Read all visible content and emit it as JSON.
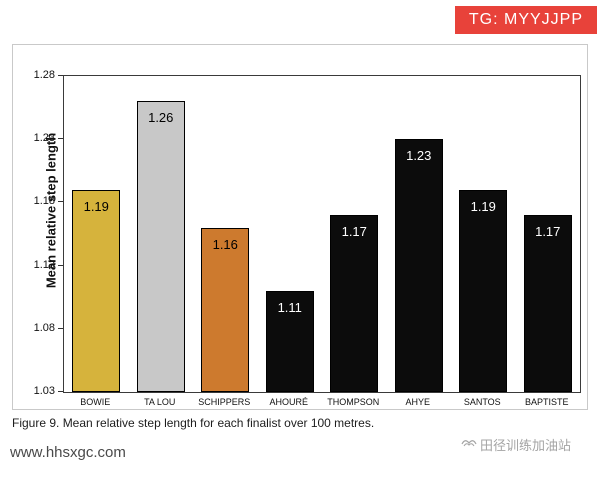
{
  "badge": {
    "text": "TG: MYYJJPP",
    "color": "#e8423a"
  },
  "caption": "Figure 9. Mean relative step length for each finalist over 100 metres.",
  "site_url": "www.hhsxgc.com",
  "watermark_text": "田径训练加油站",
  "chart_data": {
    "type": "bar",
    "categories": [
      "BOWIE",
      "TA LOU",
      "SCHIPPERS",
      "AHOURÉ",
      "THOMPSON",
      "AHYE",
      "SANTOS",
      "BAPTISTE"
    ],
    "values": [
      1.19,
      1.26,
      1.16,
      1.11,
      1.17,
      1.23,
      1.19,
      1.17
    ],
    "bar_colors": [
      "#d6b33c",
      "#c8c8c8",
      "#cd7a2e",
      "#0c0c0c",
      "#0c0c0c",
      "#0c0c0c",
      "#0c0c0c",
      "#0c0c0c"
    ],
    "value_label_colors": [
      "#000000",
      "#000000",
      "#000000",
      "#ffffff",
      "#ffffff",
      "#ffffff",
      "#ffffff",
      "#ffffff"
    ],
    "title": "",
    "xlabel": "",
    "ylabel": "Mean relative step length",
    "ylim": [
      1.03,
      1.28
    ],
    "yticks": [
      1.03,
      1.08,
      1.13,
      1.18,
      1.23,
      1.28
    ],
    "grid": false,
    "legend": false
  }
}
